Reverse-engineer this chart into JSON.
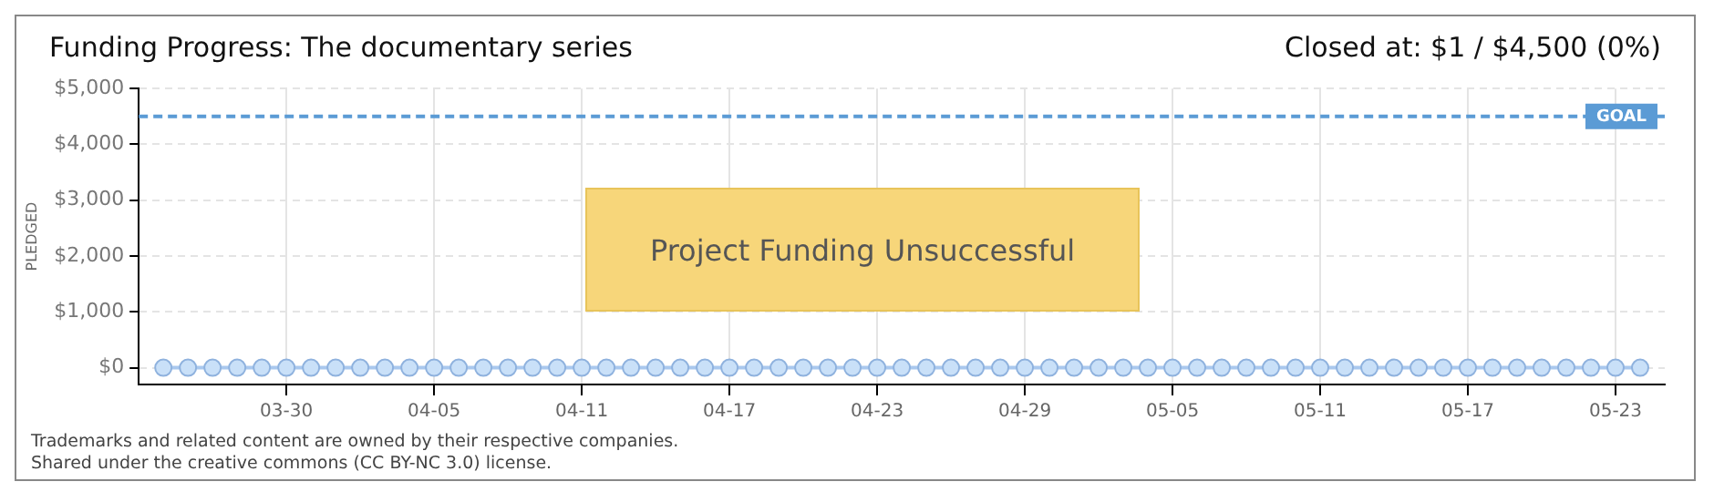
{
  "chart_data": {
    "type": "line",
    "title": "Funding Progress: The documentary series",
    "subtitle": "Closed at: $1 / $4,500 (0%)",
    "ylabel": "PLEDGED",
    "x": [
      "--03-25",
      "--03-26",
      "--03-27",
      "--03-28",
      "--03-29",
      "--03-30",
      "--03-31",
      "--04-01",
      "--04-02",
      "--04-03",
      "--04-04",
      "--04-05",
      "--04-06",
      "--04-07",
      "--04-08",
      "--04-09",
      "--04-10",
      "--04-11",
      "--04-12",
      "--04-13",
      "--04-14",
      "--04-15",
      "--04-16",
      "--04-17",
      "--04-18",
      "--04-19",
      "--04-20",
      "--04-21",
      "--04-22",
      "--04-23",
      "--04-24",
      "--04-25",
      "--04-26",
      "--04-27",
      "--04-28",
      "--04-29",
      "--04-30",
      "--05-01",
      "--05-02",
      "--05-03",
      "--05-04",
      "--05-05",
      "--05-06",
      "--05-07",
      "--05-08",
      "--05-09",
      "--05-10",
      "--05-11",
      "--05-12",
      "--05-13",
      "--05-14",
      "--05-15",
      "--05-16",
      "--05-17",
      "--05-18",
      "--05-19",
      "--05-20",
      "--05-21",
      "--05-22",
      "--05-23",
      "--05-24"
    ],
    "series": [
      {
        "color": "#a9c8ee",
        "values": [
          0,
          0,
          0,
          0,
          0,
          0,
          0,
          0,
          0,
          0,
          0,
          0,
          0,
          0,
          0,
          0,
          0,
          0,
          0,
          0,
          0,
          0,
          0,
          0,
          0,
          0,
          0,
          0,
          0,
          0,
          0,
          0,
          0,
          0,
          0,
          0,
          0,
          0,
          0,
          0,
          0,
          0,
          0,
          0,
          0,
          0,
          0,
          0,
          0,
          0,
          0,
          0,
          0,
          0,
          0,
          0,
          0,
          0,
          0,
          0,
          0
        ]
      }
    ],
    "xlim": [
      "--03-24",
      "--05-25"
    ],
    "xticks": [
      {
        "value": "--03-30",
        "label": "03-30"
      },
      {
        "value": "--04-05",
        "label": "04-05"
      },
      {
        "value": "--04-11",
        "label": "04-11"
      },
      {
        "value": "--04-17",
        "label": "04-17"
      },
      {
        "value": "--04-23",
        "label": "04-23"
      },
      {
        "value": "--04-29",
        "label": "04-29"
      },
      {
        "value": "--05-05",
        "label": "05-05"
      },
      {
        "value": "--05-11",
        "label": "05-11"
      },
      {
        "value": "--05-17",
        "label": "05-17"
      },
      {
        "value": "--05-23",
        "label": "05-23"
      }
    ],
    "ylim": [
      -300,
      5000
    ],
    "yticks": [
      {
        "value": 0,
        "label": "$0"
      },
      {
        "value": 1000,
        "label": "$1,000"
      },
      {
        "value": 2000,
        "label": "$2,000"
      },
      {
        "value": 3000,
        "label": "$3,000"
      },
      {
        "value": 4000,
        "label": "$4,000"
      },
      {
        "value": 5000,
        "label": "$5,000"
      }
    ],
    "ref_lines": [
      {
        "axis": "y",
        "value": 4500,
        "label": "GOAL",
        "color": "#5b9bd5",
        "line_style": "dashed"
      }
    ],
    "annotations": [
      "Project Funding Unsuccessful",
      "Trademarks and related content are owned by their respective companies.",
      "Shared under the creative commons (CC BY-NC 3.0) license."
    ],
    "grid": true,
    "marker": "circle",
    "line_style": "solid",
    "legend": false
  }
}
